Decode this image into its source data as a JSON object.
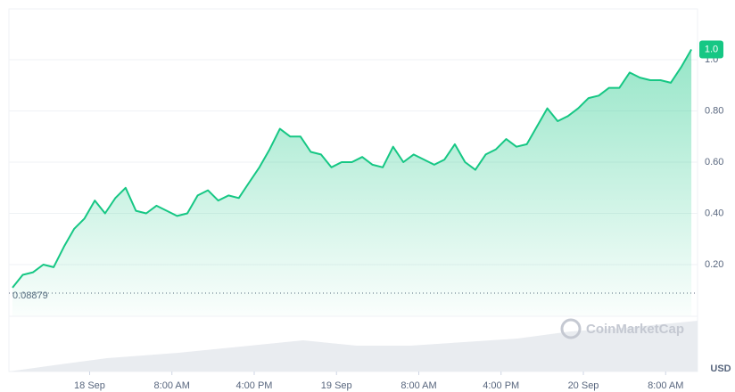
{
  "chart_data": {
    "type": "line",
    "x": [
      -7.5,
      -6.5,
      -5.5,
      -4.5,
      -3.5,
      -2.5,
      -1.5,
      -0.5,
      0.5,
      1.5,
      2.5,
      3.5,
      4.5,
      5.5,
      6.5,
      7.5,
      8.5,
      9.5,
      10.5,
      11.5,
      12.5,
      13.5,
      14.5,
      15.5,
      16.5,
      17.5,
      18.5,
      19.5,
      20.5,
      21.5,
      22.5,
      23.5,
      24.5,
      25.5,
      26.5,
      27.5,
      28.5,
      29.5,
      30.5,
      31.5,
      32.5,
      33.5,
      34.5,
      35.5,
      36.5,
      37.5,
      38.5,
      39.5,
      40.5,
      41.5,
      42.5,
      43.5,
      44.5,
      45.5,
      46.5,
      47.5,
      48.5,
      49.5,
      50.5,
      51.5,
      52.5,
      53.5,
      54.5,
      55.5,
      56.5,
      57.5,
      58.5
    ],
    "values": [
      0.11,
      0.16,
      0.17,
      0.2,
      0.19,
      0.27,
      0.34,
      0.38,
      0.45,
      0.4,
      0.46,
      0.5,
      0.41,
      0.4,
      0.43,
      0.41,
      0.39,
      0.4,
      0.47,
      0.49,
      0.45,
      0.47,
      0.46,
      0.52,
      0.58,
      0.65,
      0.73,
      0.7,
      0.7,
      0.64,
      0.63,
      0.58,
      0.6,
      0.6,
      0.62,
      0.59,
      0.58,
      0.66,
      0.6,
      0.63,
      0.61,
      0.59,
      0.61,
      0.67,
      0.6,
      0.57,
      0.63,
      0.65,
      0.69,
      0.66,
      0.67,
      0.74,
      0.81,
      0.76,
      0.78,
      0.81,
      0.85,
      0.86,
      0.89,
      0.89,
      0.95,
      0.93,
      0.92,
      0.92,
      0.91,
      0.97,
      1.04
    ],
    "color": "#16c784",
    "xlim": [
      -7.5,
      59.1
    ],
    "xticks": [
      {
        "value": 0,
        "label": "18 Sep"
      },
      {
        "value": 8,
        "label": "8:00 AM"
      },
      {
        "value": 16,
        "label": "4:00 PM"
      },
      {
        "value": 24,
        "label": "19 Sep"
      },
      {
        "value": 32,
        "label": "8:00 AM"
      },
      {
        "value": 40,
        "label": "4:00 PM"
      },
      {
        "value": 48,
        "label": "20 Sep"
      },
      {
        "value": 56,
        "label": "8:00 AM"
      }
    ],
    "ylim": [
      0,
      1.2
    ],
    "yticks": [
      {
        "value": 0.2,
        "label": "0.20"
      },
      {
        "value": 0.4,
        "label": "0.40"
      },
      {
        "value": 0.6,
        "label": "0.60"
      },
      {
        "value": 0.8,
        "label": "0.80"
      },
      {
        "value": 1.0,
        "label": "1.0"
      }
    ],
    "grid": true,
    "reference": {
      "value": 0.08879,
      "label": "0.08879"
    },
    "last_price": {
      "value": 1.04,
      "label": "1.0"
    },
    "currency": "USD",
    "watermark": "CoinMarketCap"
  }
}
